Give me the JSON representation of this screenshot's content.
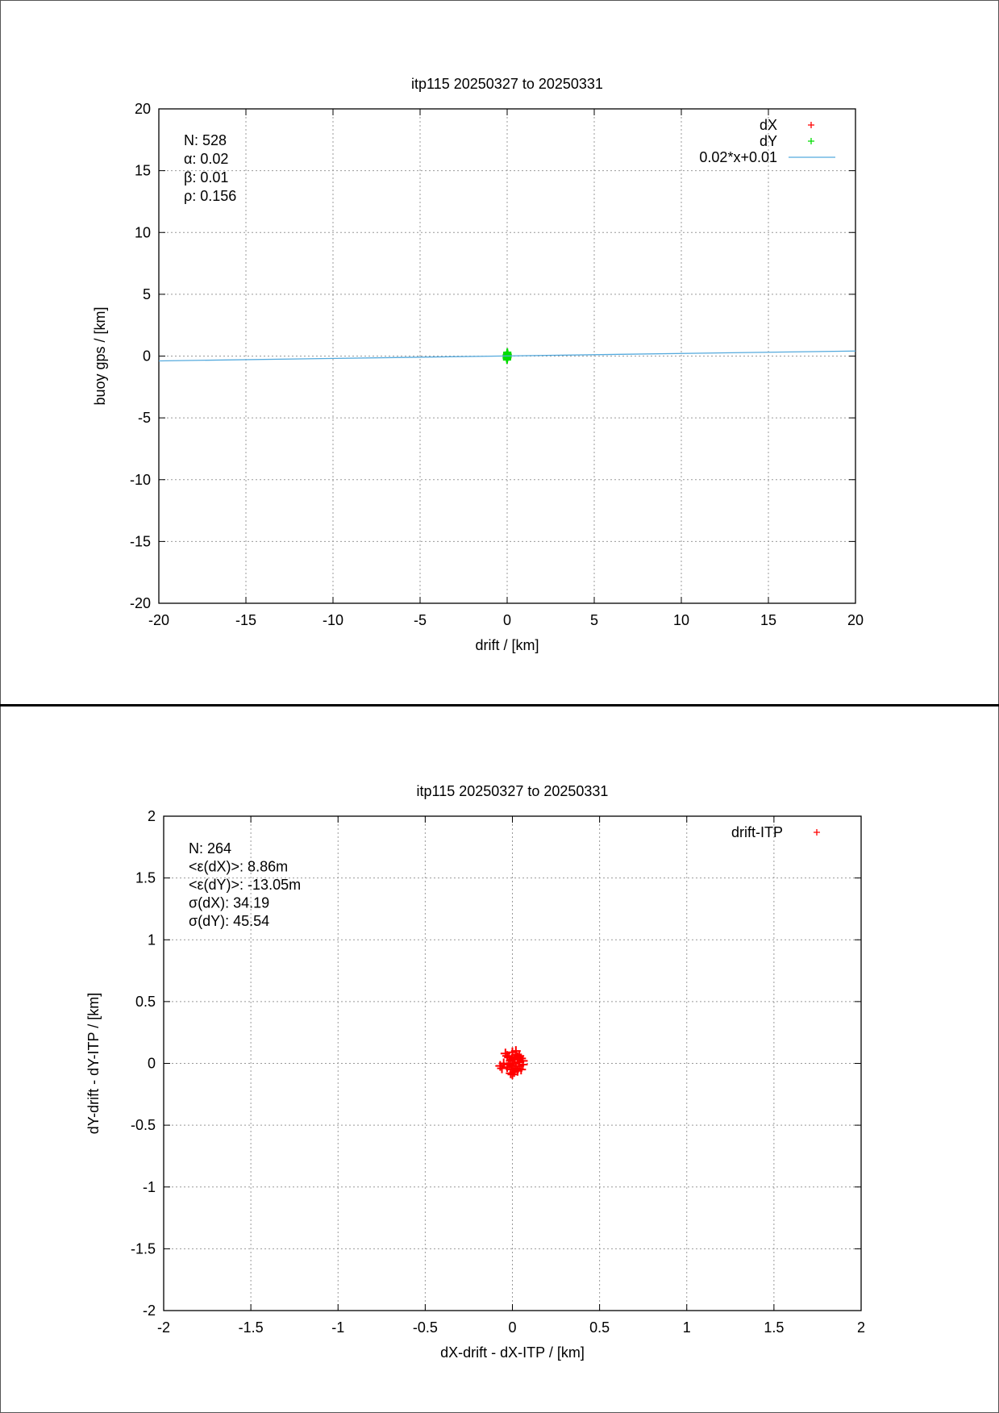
{
  "chart_data": [
    {
      "type": "scatter",
      "title": "itp115 20250327 to 20250331",
      "xlabel": "drift / [km]",
      "ylabel": "buoy gps / [km]",
      "xlim": [
        -20,
        20
      ],
      "ylim": [
        -20,
        20
      ],
      "xticks": [
        "-20",
        "-15",
        "-10",
        "-5",
        "0",
        "5",
        "10",
        "15",
        "20"
      ],
      "yticks": [
        "-20",
        "-15",
        "-10",
        "-5",
        "0",
        "5",
        "10",
        "15",
        "20"
      ],
      "grid": true,
      "legend_position": "top-right",
      "stats": [
        "N: 528",
        "α: 0.02",
        "β: 0.01",
        "ρ: 0.156"
      ],
      "series": [
        {
          "name": "dX",
          "marker": "+",
          "color": "#ff0000",
          "points": [
            [
              0.0,
              0.05
            ],
            [
              -0.03,
              0.02
            ],
            [
              0.02,
              -0.03
            ],
            [
              0.01,
              0.08
            ],
            [
              -0.02,
              -0.06
            ],
            [
              0.03,
              0.1
            ],
            [
              0.0,
              -0.1
            ],
            [
              -0.01,
              0.12
            ],
            [
              0.02,
              -0.12
            ],
            [
              0.01,
              0.0
            ]
          ]
        },
        {
          "name": "dY",
          "marker": "+",
          "color": "#00dd00",
          "points": [
            [
              0.0,
              0.0
            ],
            [
              -0.02,
              0.1
            ],
            [
              0.02,
              -0.1
            ],
            [
              0.01,
              0.2
            ],
            [
              -0.01,
              -0.2
            ],
            [
              0.03,
              0.15
            ],
            [
              -0.03,
              -0.15
            ],
            [
              0.0,
              0.25
            ],
            [
              0.0,
              -0.25
            ],
            [
              0.02,
              0.05
            ],
            [
              -0.02,
              -0.05
            ],
            [
              0.01,
              0.3
            ],
            [
              -0.01,
              -0.3
            ],
            [
              0.03,
              0.0
            ],
            [
              -0.03,
              0.02
            ]
          ]
        },
        {
          "name": "0.02*x+0.01",
          "kind": "line",
          "color": "#55aadd",
          "slope": 0.02,
          "intercept": 0.01
        }
      ]
    },
    {
      "type": "scatter",
      "title": "itp115 20250327 to 20250331",
      "xlabel": "dX-drift - dX-ITP / [km]",
      "ylabel": "dY-drift - dY-ITP / [km]",
      "xlim": [
        -2,
        2
      ],
      "ylim": [
        -2,
        2
      ],
      "xticks": [
        "-2",
        "-1.5",
        "-1",
        "-0.5",
        "0",
        "0.5",
        "1",
        "1.5",
        "2"
      ],
      "yticks": [
        "-2",
        "-1.5",
        "-1",
        "-0.5",
        "0",
        "0.5",
        "1",
        "1.5",
        "2"
      ],
      "grid": true,
      "legend_position": "top-right",
      "stats": [
        "N: 264",
        "<ε(dX)>:  8.86m",
        "<ε(dY)>: -13.05m",
        "σ(dX):  34.19",
        "σ(dY):  45.54"
      ],
      "series": [
        {
          "name": "drift-ITP",
          "marker": "+",
          "color": "#ff0000",
          "points": [
            [
              -0.04,
              0.08
            ],
            [
              -0.02,
              0.05
            ],
            [
              0.0,
              0.09
            ],
            [
              0.02,
              0.07
            ],
            [
              0.03,
              0.03
            ],
            [
              0.04,
              0.01
            ],
            [
              0.05,
              0.04
            ],
            [
              0.06,
              0.02
            ],
            [
              0.01,
              0.0
            ],
            [
              -0.01,
              0.02
            ],
            [
              0.0,
              -0.02
            ],
            [
              0.02,
              -0.04
            ],
            [
              0.03,
              -0.06
            ],
            [
              0.01,
              -0.07
            ],
            [
              -0.01,
              -0.05
            ],
            [
              -0.03,
              -0.03
            ],
            [
              -0.05,
              0.0
            ],
            [
              -0.07,
              -0.02
            ],
            [
              -0.06,
              -0.04
            ],
            [
              0.04,
              -0.02
            ],
            [
              0.05,
              -0.05
            ],
            [
              0.02,
              0.1
            ],
            [
              0.0,
              -0.09
            ],
            [
              0.03,
              0.05
            ],
            [
              -0.02,
              -0.01
            ],
            [
              0.01,
              0.04
            ],
            [
              0.04,
              0.06
            ],
            [
              -0.01,
              -0.08
            ],
            [
              0.02,
              -0.02
            ],
            [
              0.06,
              -0.01
            ],
            [
              -0.03,
              0.06
            ],
            [
              0.0,
              0.03
            ]
          ]
        }
      ]
    }
  ]
}
